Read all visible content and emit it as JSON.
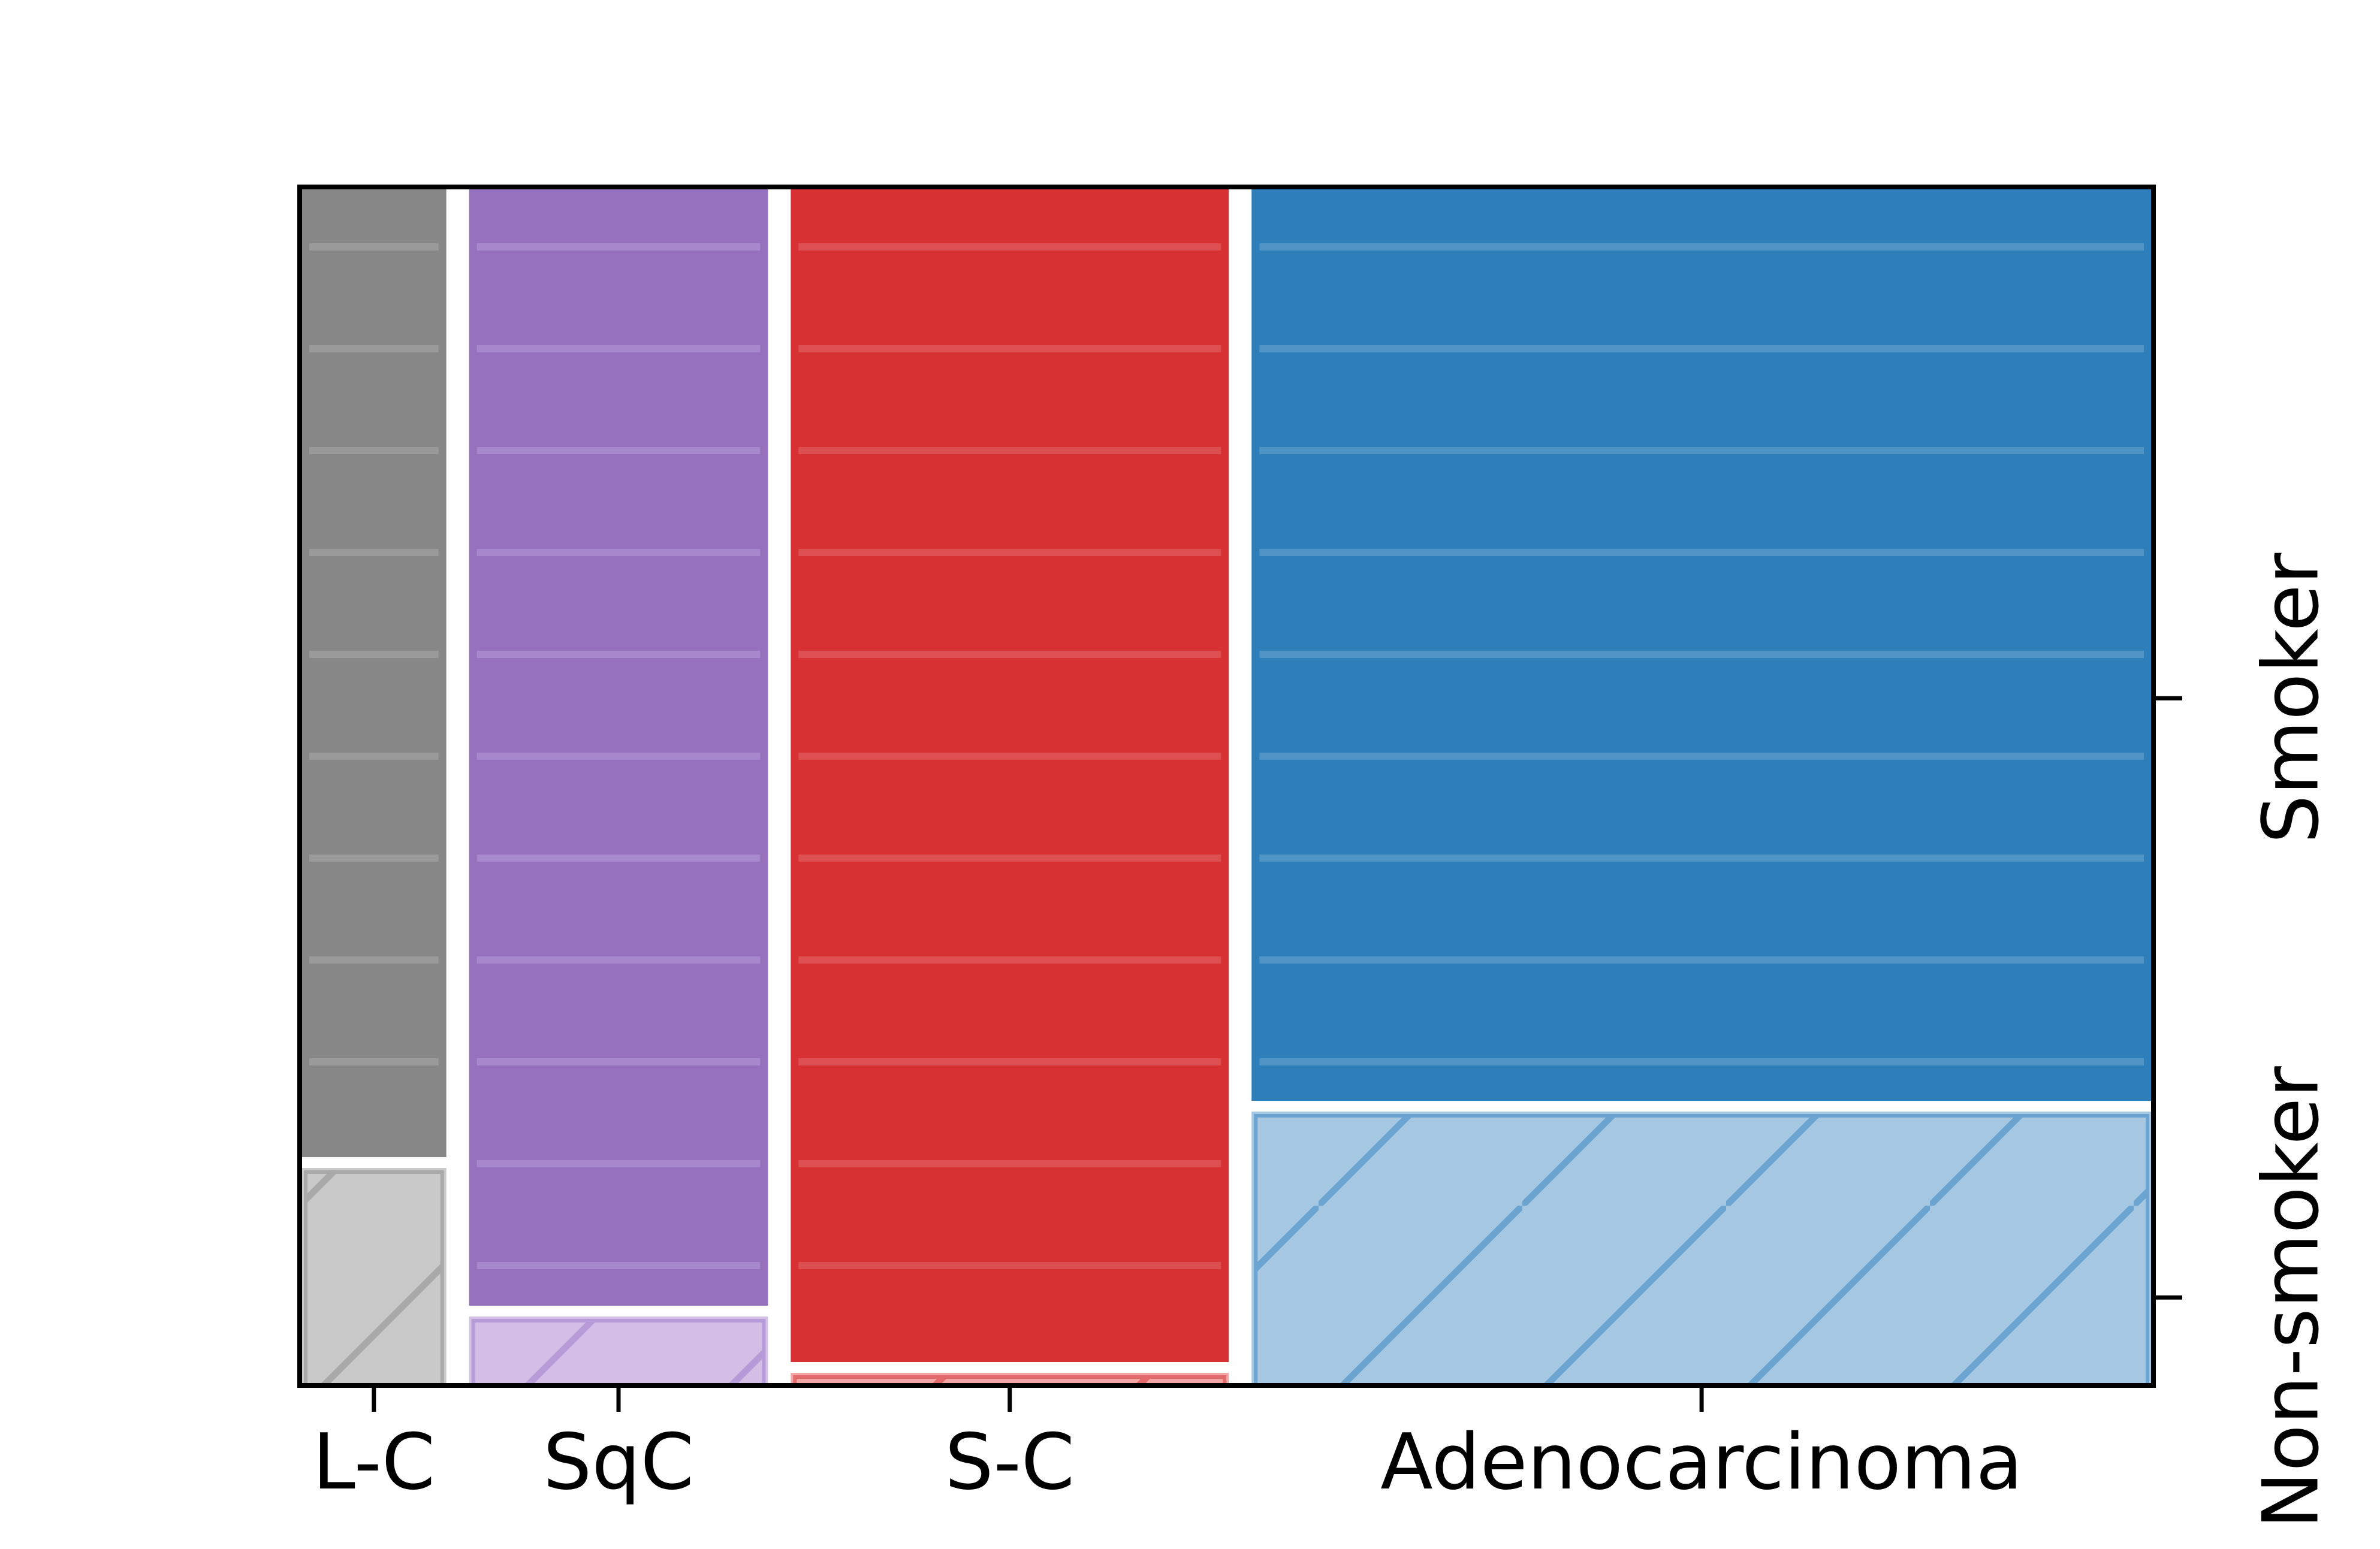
{
  "chart_data": {
    "type": "mosaic",
    "title": "",
    "xlabel": "",
    "ylabel": "",
    "categories": [
      "L-C",
      "SqC",
      "S-C",
      "Adenocarcinoma"
    ],
    "column_widths": [
      0.08,
      0.163,
      0.238,
      0.487
    ],
    "rows": [
      "Non-smoker",
      "Smoker"
    ],
    "series": [
      {
        "name": "Non-smoker",
        "values": [
          0.186,
          0.062,
          0.015,
          0.233
        ]
      },
      {
        "name": "Smoker",
        "values": [
          0.814,
          0.938,
          0.985,
          0.767
        ]
      }
    ],
    "colors": {
      "L-C": {
        "Smoker": "#878787",
        "Non-smoker": "#c9c9c9",
        "line": "#a9a9a9"
      },
      "SqC": {
        "Smoker": "#9671be",
        "Non-smoker": "#d3bfe5",
        "line": "#b69bd8"
      },
      "S-C": {
        "Smoker": "#d83133",
        "Non-smoker": "#f2a6a6",
        "line": "#e26a6a"
      },
      "Adenocarcinoma": {
        "Smoker": "#2e7eb9",
        "Non-smoker": "#a5c7e1",
        "line": "#6ba4d0"
      }
    },
    "hatch": {
      "Smoker": "horizontal",
      "Non-smoker": "diagonal"
    },
    "y_axis_position": "right",
    "grid": false,
    "legend": "none"
  }
}
